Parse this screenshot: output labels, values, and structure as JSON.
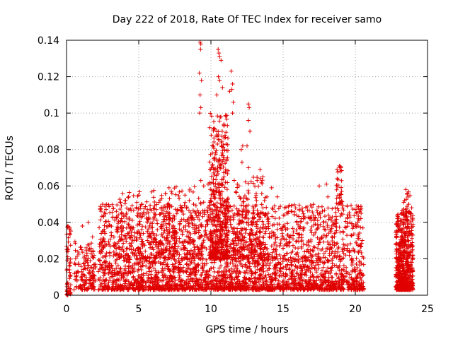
{
  "chart_data": {
    "type": "scatter",
    "title": "Day 222 of 2018, Rate Of TEC Index for receiver samo",
    "xlabel": "GPS time / hours",
    "ylabel": "ROTI / TECUs",
    "xlim": [
      0,
      25
    ],
    "ylim": [
      0,
      0.14
    ],
    "x_ticks": [
      "0",
      "5",
      "10",
      "15",
      "20",
      "25"
    ],
    "y_ticks": [
      "0",
      "0.02",
      "0.04",
      "0.06",
      "0.08",
      "0.1",
      "0.12",
      "0.14"
    ],
    "grid": true,
    "marker": "plus",
    "color": "#e00000",
    "clusters": [
      {
        "x": [
          0.0,
          0.3
        ],
        "y": [
          0.0,
          0.038
        ],
        "n": 60
      },
      {
        "x": [
          0.5,
          2.0
        ],
        "y": [
          0.003,
          0.03
        ],
        "n": 150
      },
      {
        "x": [
          2.2,
          20.6
        ],
        "y": [
          0.003,
          0.05
        ],
        "n": 3200
      },
      {
        "x": [
          3.5,
          9.5
        ],
        "y": [
          0.02,
          0.06
        ],
        "n": 250
      },
      {
        "x": [
          9.9,
          11.2
        ],
        "y": [
          0.02,
          0.1
        ],
        "n": 400
      },
      {
        "x": [
          11.5,
          14.0
        ],
        "y": [
          0.02,
          0.065
        ],
        "n": 200
      },
      {
        "x": [
          22.8,
          24.0
        ],
        "y": [
          0.003,
          0.045
        ],
        "n": 600
      },
      {
        "x": [
          23.2,
          23.8
        ],
        "y": [
          0.045,
          0.058
        ],
        "n": 25
      },
      {
        "x": [
          18.7,
          19.1
        ],
        "y": [
          0.05,
          0.071
        ],
        "n": 30
      }
    ],
    "points": [
      [
        9.25,
        0.139
      ],
      [
        9.3,
        0.138
      ],
      [
        9.28,
        0.135
      ],
      [
        9.2,
        0.122
      ],
      [
        9.35,
        0.118
      ],
      [
        9.25,
        0.11
      ],
      [
        9.3,
        0.103
      ],
      [
        9.22,
        0.1
      ],
      [
        10.5,
        0.135
      ],
      [
        10.55,
        0.133
      ],
      [
        10.6,
        0.131
      ],
      [
        10.7,
        0.129
      ],
      [
        10.52,
        0.12
      ],
      [
        10.6,
        0.118
      ],
      [
        10.8,
        0.114
      ],
      [
        11.4,
        0.123
      ],
      [
        11.5,
        0.116
      ],
      [
        11.45,
        0.113
      ],
      [
        11.3,
        0.112
      ],
      [
        11.55,
        0.106
      ],
      [
        11.5,
        0.1
      ],
      [
        10.4,
        0.11
      ],
      [
        10.9,
        0.093
      ],
      [
        12.6,
        0.105
      ],
      [
        12.65,
        0.103
      ],
      [
        12.6,
        0.096
      ],
      [
        12.7,
        0.09
      ],
      [
        12.5,
        0.082
      ],
      [
        12.6,
        0.07
      ],
      [
        12.2,
        0.082
      ],
      [
        12.1,
        0.08
      ],
      [
        12.15,
        0.073
      ],
      [
        10.4,
        0.088
      ],
      [
        10.45,
        0.083
      ],
      [
        10.1,
        0.078
      ],
      [
        10.2,
        0.075
      ],
      [
        10.3,
        0.069
      ],
      [
        10.6,
        0.07
      ],
      [
        10.7,
        0.072
      ],
      [
        10.9,
        0.065
      ],
      [
        11.0,
        0.062
      ],
      [
        9.3,
        0.063
      ],
      [
        9.5,
        0.06
      ],
      [
        9.8,
        0.061
      ],
      [
        7.1,
        0.059
      ],
      [
        7.3,
        0.056
      ],
      [
        6.4,
        0.051
      ],
      [
        6.6,
        0.053
      ],
      [
        8.5,
        0.052
      ],
      [
        8.8,
        0.05
      ],
      [
        2.5,
        0.05
      ],
      [
        17.5,
        0.06
      ],
      [
        18.0,
        0.061
      ],
      [
        18.1,
        0.054
      ],
      [
        18.9,
        0.071
      ],
      [
        19.0,
        0.07
      ],
      [
        18.95,
        0.068
      ],
      [
        19.05,
        0.057
      ],
      [
        18.9,
        0.055
      ],
      [
        23.5,
        0.058
      ],
      [
        23.6,
        0.056
      ],
      [
        23.4,
        0.052
      ],
      [
        23.7,
        0.05
      ],
      [
        23.9,
        0.048
      ],
      [
        20.1,
        0.049
      ],
      [
        20.3,
        0.047
      ],
      [
        20.4,
        0.045
      ],
      [
        13.4,
        0.069
      ],
      [
        13.6,
        0.065
      ],
      [
        13.2,
        0.063
      ],
      [
        14.2,
        0.059
      ],
      [
        14.6,
        0.054
      ],
      [
        15.1,
        0.048
      ],
      [
        15.6,
        0.046
      ],
      [
        16.4,
        0.042
      ],
      [
        17.1,
        0.044
      ],
      [
        17.6,
        0.045
      ],
      [
        18.4,
        0.043
      ],
      [
        19.6,
        0.044
      ],
      [
        4.1,
        0.052
      ],
      [
        4.3,
        0.054
      ],
      [
        3.8,
        0.049
      ],
      [
        5.0,
        0.055
      ],
      [
        5.2,
        0.05
      ],
      [
        5.6,
        0.047
      ],
      [
        6.1,
        0.049
      ],
      [
        7.8,
        0.053
      ],
      [
        8.2,
        0.055
      ],
      [
        1.5,
        0.04
      ],
      [
        1.1,
        0.038
      ],
      [
        1.8,
        0.032
      ],
      [
        0.1,
        0.038
      ]
    ]
  }
}
